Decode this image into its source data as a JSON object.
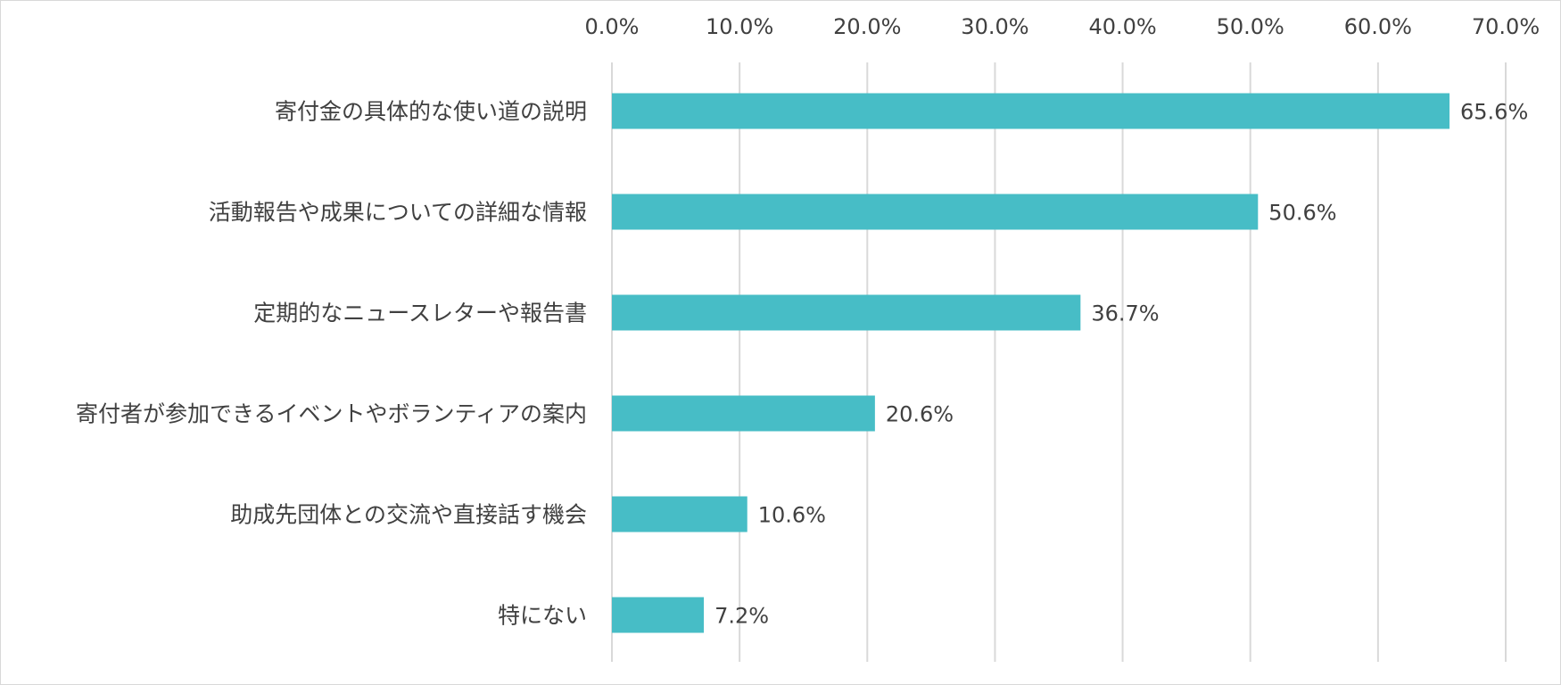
{
  "chart_data": {
    "type": "bar",
    "orientation": "horizontal",
    "title": "",
    "xlabel": "",
    "ylabel": "",
    "categories": [
      "寄付金の具体的な使い道の説明",
      "活動報告や成果についての詳細な情報",
      "定期的なニュースレターや報告書",
      "寄付者が参加できるイベントやボランティアの案内",
      "助成先団体との交流や直接話す機会",
      "特にない"
    ],
    "values": [
      65.6,
      50.6,
      36.7,
      20.6,
      10.6,
      7.2
    ],
    "value_labels": [
      "65.6%",
      "50.6%",
      "36.7%",
      "20.6%",
      "10.6%",
      "7.2%"
    ],
    "xlim": [
      0,
      70
    ],
    "ticks": [
      0,
      10,
      20,
      30,
      40,
      50,
      60,
      70
    ],
    "tick_labels": [
      "0.0%",
      "10.0%",
      "20.0%",
      "30.0%",
      "40.0%",
      "50.0%",
      "60.0%",
      "70.0%"
    ],
    "axis_position": "top",
    "grid": true,
    "legend": "none",
    "bar_color": "#47bdc6",
    "grid_color": "#d9d9d9"
  }
}
